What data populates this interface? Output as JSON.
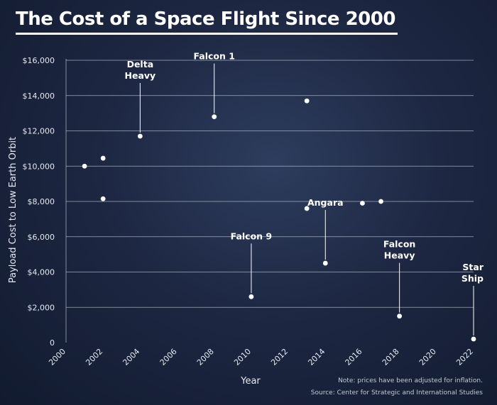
{
  "page": {
    "title": "The Cost of a Space Flight Since 2000",
    "note": "Note: prices have been adjusted for inflation.",
    "source": "Source: Center for Strategic and International Studies"
  },
  "colors": {
    "background": "#1d2742",
    "gridline": "#cfd5e0",
    "point": "#ffffff",
    "text": "#ffffff"
  },
  "chart_data": {
    "type": "scatter",
    "title": "The Cost of a Space Flight Since 2000",
    "xlabel": "Year",
    "ylabel": "Payload Cost to Low Earth Orbit",
    "xlim": [
      2000,
      2022
    ],
    "ylim": [
      0,
      16000
    ],
    "x_ticks": [
      "2000",
      "2002",
      "2004",
      "2006",
      "2008",
      "2010",
      "2012",
      "2014",
      "2016",
      "2018",
      "2020",
      "2022"
    ],
    "y_ticks": [
      "0",
      "$2,000",
      "$4,000",
      "$6,000",
      "$8,000",
      "$10,000",
      "$12,000",
      "$14,000",
      "$16,000"
    ],
    "grid": "horizontal",
    "points": [
      {
        "x": 2001,
        "y": 10000
      },
      {
        "x": 2002,
        "y": 10450
      },
      {
        "x": 2002,
        "y": 8150
      },
      {
        "x": 2004,
        "y": 11700
      },
      {
        "x": 2008,
        "y": 12800
      },
      {
        "x": 2010,
        "y": 2600
      },
      {
        "x": 2013,
        "y": 13700
      },
      {
        "x": 2013,
        "y": 7600
      },
      {
        "x": 2014,
        "y": 4500
      },
      {
        "x": 2016,
        "y": 7900
      },
      {
        "x": 2017,
        "y": 8000
      },
      {
        "x": 2018,
        "y": 1500
      },
      {
        "x": 2022,
        "y": 200
      }
    ],
    "annotations": [
      {
        "lines": [
          "Delta",
          "Heavy"
        ],
        "x": 2004,
        "y": 11700
      },
      {
        "lines": [
          "Falcon 1"
        ],
        "x": 2008,
        "y": 12800
      },
      {
        "lines": [
          "Falcon 9"
        ],
        "x": 2010,
        "y": 2600
      },
      {
        "lines": [
          "Angara"
        ],
        "x": 2014,
        "y": 4500
      },
      {
        "lines": [
          "Falcon",
          "Heavy"
        ],
        "x": 2018,
        "y": 1500
      },
      {
        "lines": [
          "Star",
          "Ship"
        ],
        "x": 2022,
        "y": 200
      }
    ]
  }
}
